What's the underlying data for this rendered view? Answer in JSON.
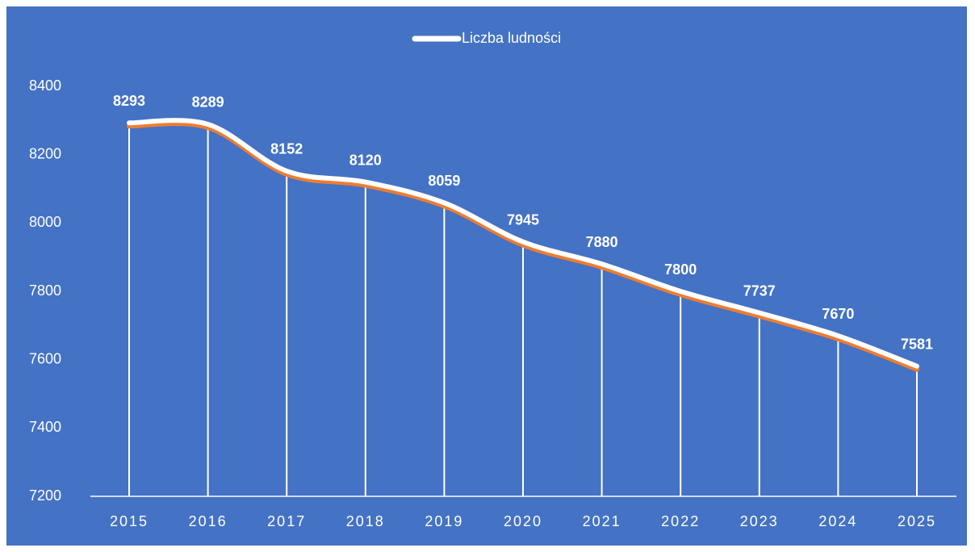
{
  "chart_data": {
    "type": "line",
    "categories": [
      "2015",
      "2016",
      "2017",
      "2018",
      "2019",
      "2020",
      "2021",
      "2022",
      "2023",
      "2024",
      "2025"
    ],
    "series": [
      {
        "name": "Liczba ludności",
        "color": "#ffffff",
        "values": [
          8293,
          8289,
          8152,
          8120,
          8059,
          7945,
          7880,
          7800,
          7737,
          7670,
          7581
        ]
      }
    ],
    "ylim": [
      7200,
      8400
    ],
    "yticks": [
      7200,
      7400,
      7600,
      7800,
      8000,
      8200,
      8400
    ],
    "grid": false,
    "drop_lines": true,
    "smooth": true,
    "legend": "top",
    "background": "#4472c4"
  }
}
